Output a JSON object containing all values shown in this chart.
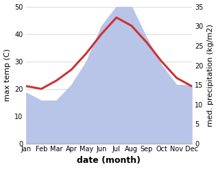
{
  "months": [
    "Jan",
    "Feb",
    "Mar",
    "Apr",
    "May",
    "Jun",
    "Jul",
    "Aug",
    "Sep",
    "Oct",
    "Nov",
    "Dec"
  ],
  "temperature": [
    21,
    20,
    23,
    27,
    33,
    40,
    46,
    43,
    37,
    30,
    24,
    21
  ],
  "precipitation_kg": [
    13,
    11,
    11,
    15,
    21,
    30,
    35,
    35,
    27,
    20,
    15,
    15
  ],
  "temp_ylim": [
    0,
    50
  ],
  "precip_ylim": [
    0,
    35
  ],
  "temp_color": "#cc3333",
  "precip_fill_color": "#b8c4e8",
  "xlabel": "date (month)",
  "ylabel_left": "max temp (C)",
  "ylabel_right": "med. precipitation (kg/m2)",
  "bg_color": "#ffffff",
  "grid_color": "#cccccc",
  "temp_linewidth": 2.2,
  "tick_fontsize": 7,
  "label_fontsize": 8,
  "xlabel_fontsize": 9
}
